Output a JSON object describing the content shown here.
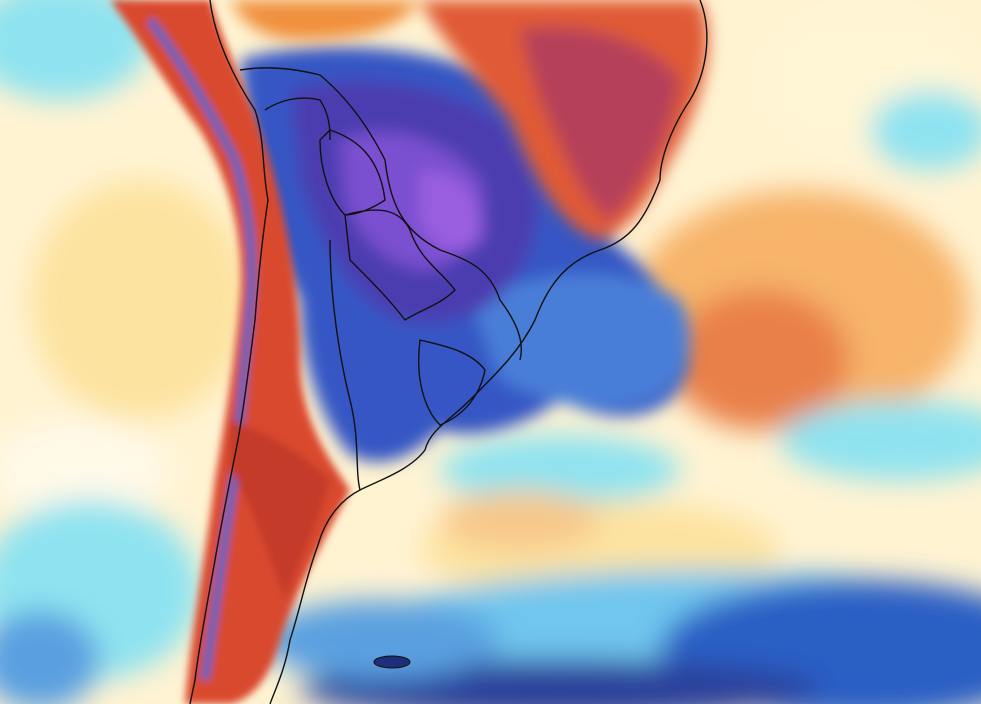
{
  "map": {
    "palette": {
      "very_cold": "#6a3fc4",
      "cold_deep": "#2c3f9a",
      "cold": "#3457c4",
      "cool": "#5aa0e0",
      "cyan": "#8fe3f0",
      "pale": "#fff6d6",
      "mild": "#fde3a0",
      "warm": "#f7b46a",
      "hot": "#e46a3a",
      "very_hot": "#c43a2a",
      "extreme": "#b5405a",
      "border": "#111111"
    },
    "layers": [
      "temperature-anomaly-field",
      "coastlines",
      "country-borders",
      "province-borders"
    ],
    "legend_visible": false
  }
}
